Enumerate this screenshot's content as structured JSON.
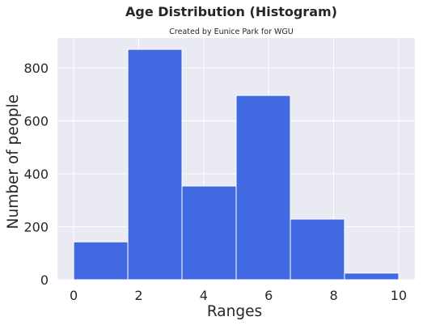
{
  "chart_data": {
    "type": "bar",
    "title": "Age Distribution (Histogram)",
    "subtitle": "Created by Eunice Park for WGU",
    "xlabel": "Ranges",
    "ylabel": "Number of people",
    "bins": [
      {
        "start": 0.0,
        "end": 1.667,
        "value": 143
      },
      {
        "start": 1.667,
        "end": 3.333,
        "value": 870
      },
      {
        "start": 3.333,
        "end": 5.0,
        "value": 354
      },
      {
        "start": 5.0,
        "end": 6.667,
        "value": 696
      },
      {
        "start": 6.667,
        "end": 8.333,
        "value": 229
      },
      {
        "start": 8.333,
        "end": 10.0,
        "value": 25
      }
    ],
    "x_ticks": [
      0,
      2,
      4,
      6,
      8,
      10
    ],
    "y_ticks": [
      0,
      200,
      400,
      600,
      800
    ],
    "xlim": [
      -0.5,
      10.5
    ],
    "ylim": [
      0,
      913
    ],
    "grid": true,
    "bar_color": "#4169e1",
    "background_color": "#eaeaf2",
    "grid_color": "#ffffff"
  }
}
